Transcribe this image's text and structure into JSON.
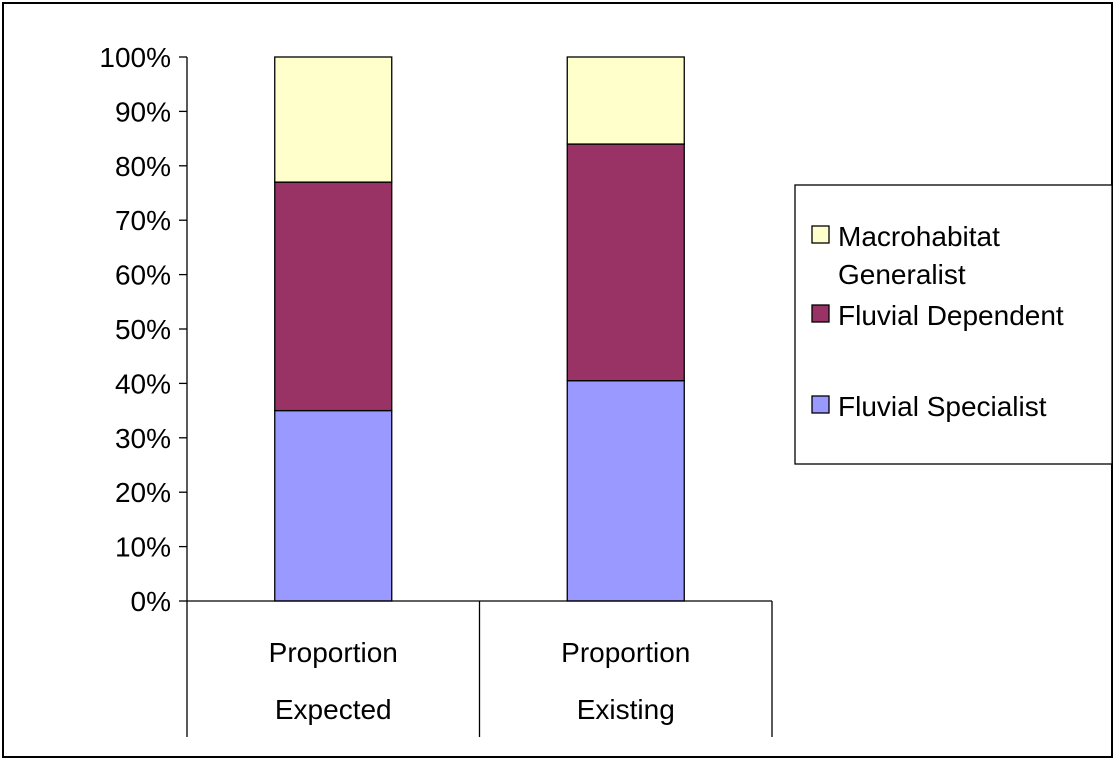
{
  "chart_data": {
    "type": "bar",
    "stacked": true,
    "percent_stacked": true,
    "categories": [
      [
        "Proportion",
        "Expected"
      ],
      [
        "Proportion",
        "Existing"
      ]
    ],
    "series": [
      {
        "name": "Fluvial Specialist",
        "values": [
          35,
          40.5
        ],
        "color": "#9999ff"
      },
      {
        "name": "Fluvial Dependent",
        "values": [
          42,
          43.5
        ],
        "color": "#993366"
      },
      {
        "name": "Macrohabitat Generalist",
        "values": [
          23,
          16
        ],
        "color": "#ffffcc"
      }
    ],
    "legend": {
      "position": "right",
      "order": [
        2,
        1,
        0
      ],
      "labels": [
        [
          "Macrohabitat",
          "Generalist"
        ],
        [
          "Fluvial Dependent"
        ],
        [
          "Fluvial Specialist"
        ]
      ]
    },
    "ylim": [
      0,
      100
    ],
    "yticks": [
      "0%",
      "10%",
      "20%",
      "30%",
      "40%",
      "50%",
      "60%",
      "70%",
      "80%",
      "90%",
      "100%"
    ],
    "grid": false,
    "title": "",
    "xlabel": "",
    "ylabel": ""
  }
}
